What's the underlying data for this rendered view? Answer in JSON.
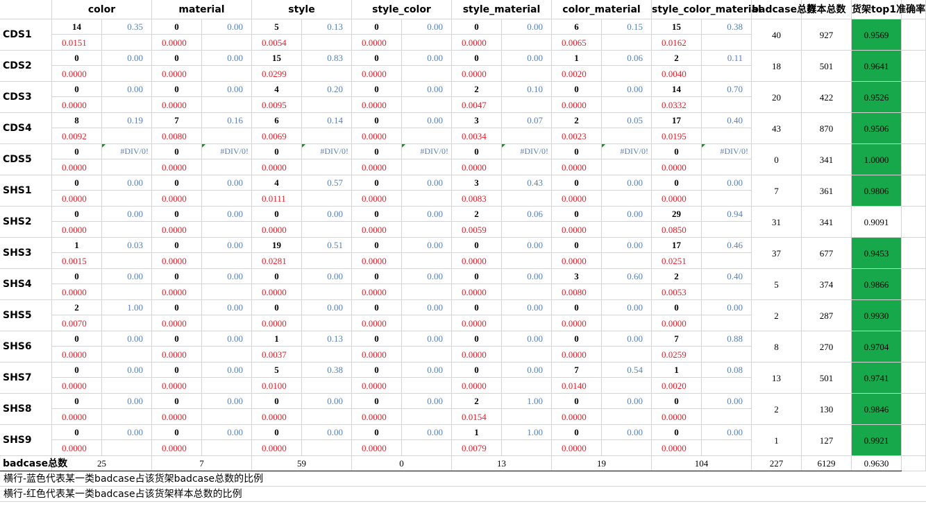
{
  "headers": {
    "categories": [
      "color",
      "material",
      "style",
      "style_color",
      "style_material",
      "color_material",
      "style_color_material"
    ],
    "badcase_total": "badcase总数",
    "sample_total": "样本总数",
    "top1_acc": "货架top1准确率"
  },
  "div_error_text": "#DIV/0!",
  "rows": [
    {
      "label": "CDS1",
      "cells": [
        {
          "count": "14",
          "ratio": "0.35",
          "share": "0.0151"
        },
        {
          "count": "0",
          "ratio": "0.00",
          "share": "0.0000"
        },
        {
          "count": "5",
          "ratio": "0.13",
          "share": "0.0054"
        },
        {
          "count": "0",
          "ratio": "0.00",
          "share": "0.0000"
        },
        {
          "count": "0",
          "ratio": "0.00",
          "share": "0.0000"
        },
        {
          "count": "6",
          "ratio": "0.15",
          "share": "0.0065"
        },
        {
          "count": "15",
          "ratio": "0.38",
          "share": "0.0162"
        }
      ],
      "badcase": "40",
      "samples": "927",
      "acc": "0.9569",
      "highlight": true
    },
    {
      "label": "CDS2",
      "cells": [
        {
          "count": "0",
          "ratio": "0.00",
          "share": "0.0000"
        },
        {
          "count": "0",
          "ratio": "0.00",
          "share": "0.0000"
        },
        {
          "count": "15",
          "ratio": "0.83",
          "share": "0.0299"
        },
        {
          "count": "0",
          "ratio": "0.00",
          "share": "0.0000"
        },
        {
          "count": "0",
          "ratio": "0.00",
          "share": "0.0000"
        },
        {
          "count": "1",
          "ratio": "0.06",
          "share": "0.0020"
        },
        {
          "count": "2",
          "ratio": "0.11",
          "share": "0.0040"
        }
      ],
      "badcase": "18",
      "samples": "501",
      "acc": "0.9641",
      "highlight": true
    },
    {
      "label": "CDS3",
      "cells": [
        {
          "count": "0",
          "ratio": "0.00",
          "share": "0.0000"
        },
        {
          "count": "0",
          "ratio": "0.00",
          "share": "0.0000"
        },
        {
          "count": "4",
          "ratio": "0.20",
          "share": "0.0095"
        },
        {
          "count": "0",
          "ratio": "0.00",
          "share": "0.0000"
        },
        {
          "count": "2",
          "ratio": "0.10",
          "share": "0.0047"
        },
        {
          "count": "0",
          "ratio": "0.00",
          "share": "0.0000"
        },
        {
          "count": "14",
          "ratio": "0.70",
          "share": "0.0332"
        }
      ],
      "badcase": "20",
      "samples": "422",
      "acc": "0.9526",
      "highlight": true
    },
    {
      "label": "CDS4",
      "cells": [
        {
          "count": "8",
          "ratio": "0.19",
          "share": "0.0092"
        },
        {
          "count": "7",
          "ratio": "0.16",
          "share": "0.0080"
        },
        {
          "count": "6",
          "ratio": "0.14",
          "share": "0.0069"
        },
        {
          "count": "0",
          "ratio": "0.00",
          "share": "0.0000"
        },
        {
          "count": "3",
          "ratio": "0.07",
          "share": "0.0034"
        },
        {
          "count": "2",
          "ratio": "0.05",
          "share": "0.0023"
        },
        {
          "count": "17",
          "ratio": "0.40",
          "share": "0.0195"
        }
      ],
      "badcase": "43",
      "samples": "870",
      "acc": "0.9506",
      "highlight": true
    },
    {
      "label": "CDS5",
      "cells": [
        {
          "count": "0",
          "ratio": "#DIV/0!",
          "share": "0.0000"
        },
        {
          "count": "0",
          "ratio": "#DIV/0!",
          "share": "0.0000"
        },
        {
          "count": "0",
          "ratio": "#DIV/0!",
          "share": "0.0000"
        },
        {
          "count": "0",
          "ratio": "#DIV/0!",
          "share": "0.0000"
        },
        {
          "count": "0",
          "ratio": "#DIV/0!",
          "share": "0.0000"
        },
        {
          "count": "0",
          "ratio": "#DIV/0!",
          "share": "0.0000"
        },
        {
          "count": "0",
          "ratio": "#DIV/0!",
          "share": "0.0000"
        }
      ],
      "badcase": "0",
      "samples": "341",
      "acc": "1.0000",
      "highlight": true
    },
    {
      "label": "SHS1",
      "cells": [
        {
          "count": "0",
          "ratio": "0.00",
          "share": "0.0000"
        },
        {
          "count": "0",
          "ratio": "0.00",
          "share": "0.0000"
        },
        {
          "count": "4",
          "ratio": "0.57",
          "share": "0.0111"
        },
        {
          "count": "0",
          "ratio": "0.00",
          "share": "0.0000"
        },
        {
          "count": "3",
          "ratio": "0.43",
          "share": "0.0083"
        },
        {
          "count": "0",
          "ratio": "0.00",
          "share": "0.0000"
        },
        {
          "count": "0",
          "ratio": "0.00",
          "share": "0.0000"
        }
      ],
      "badcase": "7",
      "samples": "361",
      "acc": "0.9806",
      "highlight": true
    },
    {
      "label": "SHS2",
      "cells": [
        {
          "count": "0",
          "ratio": "0.00",
          "share": "0.0000"
        },
        {
          "count": "0",
          "ratio": "0.00",
          "share": "0.0000"
        },
        {
          "count": "0",
          "ratio": "0.00",
          "share": "0.0000"
        },
        {
          "count": "0",
          "ratio": "0.00",
          "share": "0.0000"
        },
        {
          "count": "2",
          "ratio": "0.06",
          "share": "0.0059"
        },
        {
          "count": "0",
          "ratio": "0.00",
          "share": "0.0000"
        },
        {
          "count": "29",
          "ratio": "0.94",
          "share": "0.0850"
        }
      ],
      "badcase": "31",
      "samples": "341",
      "acc": "0.9091",
      "highlight": false
    },
    {
      "label": "SHS3",
      "cells": [
        {
          "count": "1",
          "ratio": "0.03",
          "share": "0.0015"
        },
        {
          "count": "0",
          "ratio": "0.00",
          "share": "0.0000"
        },
        {
          "count": "19",
          "ratio": "0.51",
          "share": "0.0281"
        },
        {
          "count": "0",
          "ratio": "0.00",
          "share": "0.0000"
        },
        {
          "count": "0",
          "ratio": "0.00",
          "share": "0.0000"
        },
        {
          "count": "0",
          "ratio": "0.00",
          "share": "0.0000"
        },
        {
          "count": "17",
          "ratio": "0.46",
          "share": "0.0251"
        }
      ],
      "badcase": "37",
      "samples": "677",
      "acc": "0.9453",
      "highlight": true
    },
    {
      "label": "SHS4",
      "cells": [
        {
          "count": "0",
          "ratio": "0.00",
          "share": "0.0000"
        },
        {
          "count": "0",
          "ratio": "0.00",
          "share": "0.0000"
        },
        {
          "count": "0",
          "ratio": "0.00",
          "share": "0.0000"
        },
        {
          "count": "0",
          "ratio": "0.00",
          "share": "0.0000"
        },
        {
          "count": "0",
          "ratio": "0.00",
          "share": "0.0000"
        },
        {
          "count": "3",
          "ratio": "0.60",
          "share": "0.0080"
        },
        {
          "count": "2",
          "ratio": "0.40",
          "share": "0.0053"
        }
      ],
      "badcase": "5",
      "samples": "374",
      "acc": "0.9866",
      "highlight": true
    },
    {
      "label": "SHS5",
      "cells": [
        {
          "count": "2",
          "ratio": "1.00",
          "share": "0.0070"
        },
        {
          "count": "0",
          "ratio": "0.00",
          "share": "0.0000"
        },
        {
          "count": "0",
          "ratio": "0.00",
          "share": "0.0000"
        },
        {
          "count": "0",
          "ratio": "0.00",
          "share": "0.0000"
        },
        {
          "count": "0",
          "ratio": "0.00",
          "share": "0.0000"
        },
        {
          "count": "0",
          "ratio": "0.00",
          "share": "0.0000"
        },
        {
          "count": "0",
          "ratio": "0.00",
          "share": "0.0000"
        }
      ],
      "badcase": "2",
      "samples": "287",
      "acc": "0.9930",
      "highlight": true
    },
    {
      "label": "SHS6",
      "cells": [
        {
          "count": "0",
          "ratio": "0.00",
          "share": "0.0000"
        },
        {
          "count": "0",
          "ratio": "0.00",
          "share": "0.0000"
        },
        {
          "count": "1",
          "ratio": "0.13",
          "share": "0.0037"
        },
        {
          "count": "0",
          "ratio": "0.00",
          "share": "0.0000"
        },
        {
          "count": "0",
          "ratio": "0.00",
          "share": "0.0000"
        },
        {
          "count": "0",
          "ratio": "0.00",
          "share": "0.0000"
        },
        {
          "count": "7",
          "ratio": "0.88",
          "share": "0.0259"
        }
      ],
      "badcase": "8",
      "samples": "270",
      "acc": "0.9704",
      "highlight": true
    },
    {
      "label": "SHS7",
      "cells": [
        {
          "count": "0",
          "ratio": "0.00",
          "share": "0.0000"
        },
        {
          "count": "0",
          "ratio": "0.00",
          "share": "0.0000"
        },
        {
          "count": "5",
          "ratio": "0.38",
          "share": "0.0100"
        },
        {
          "count": "0",
          "ratio": "0.00",
          "share": "0.0000"
        },
        {
          "count": "0",
          "ratio": "0.00",
          "share": "0.0000"
        },
        {
          "count": "7",
          "ratio": "0.54",
          "share": "0.0140"
        },
        {
          "count": "1",
          "ratio": "0.08",
          "share": "0.0020"
        }
      ],
      "badcase": "13",
      "samples": "501",
      "acc": "0.9741",
      "highlight": true
    },
    {
      "label": "SHS8",
      "cells": [
        {
          "count": "0",
          "ratio": "0.00",
          "share": "0.0000"
        },
        {
          "count": "0",
          "ratio": "0.00",
          "share": "0.0000"
        },
        {
          "count": "0",
          "ratio": "0.00",
          "share": "0.0000"
        },
        {
          "count": "0",
          "ratio": "0.00",
          "share": "0.0000"
        },
        {
          "count": "2",
          "ratio": "1.00",
          "share": "0.0154"
        },
        {
          "count": "0",
          "ratio": "0.00",
          "share": "0.0000"
        },
        {
          "count": "0",
          "ratio": "0.00",
          "share": "0.0000"
        }
      ],
      "badcase": "2",
      "samples": "130",
      "acc": "0.9846",
      "highlight": true
    },
    {
      "label": "SHS9",
      "cells": [
        {
          "count": "0",
          "ratio": "0.00",
          "share": "0.0000"
        },
        {
          "count": "0",
          "ratio": "0.00",
          "share": "0.0000"
        },
        {
          "count": "0",
          "ratio": "0.00",
          "share": "0.0000"
        },
        {
          "count": "0",
          "ratio": "0.00",
          "share": "0.0000"
        },
        {
          "count": "1",
          "ratio": "1.00",
          "share": "0.0079"
        },
        {
          "count": "0",
          "ratio": "0.00",
          "share": "0.0000"
        },
        {
          "count": "0",
          "ratio": "0.00",
          "share": "0.0000"
        }
      ],
      "badcase": "1",
      "samples": "127",
      "acc": "0.9921",
      "highlight": true
    }
  ],
  "totals": {
    "label": "badcase总数",
    "values": [
      "25",
      "7",
      "59",
      "0",
      "13",
      "19",
      "104"
    ],
    "badcase": "227",
    "samples": "6129",
    "acc": "0.9630"
  },
  "notes": [
    "横行-蓝色代表某一类badcase占该货架badcase总数的比例",
    "横行-红色代表某一类badcase占该货架样本总数的比例"
  ],
  "colors": {
    "ratio": "#5b7fb3",
    "share": "#e0202a",
    "highlight": "#16a84b",
    "grid": "#d4d4d4"
  }
}
